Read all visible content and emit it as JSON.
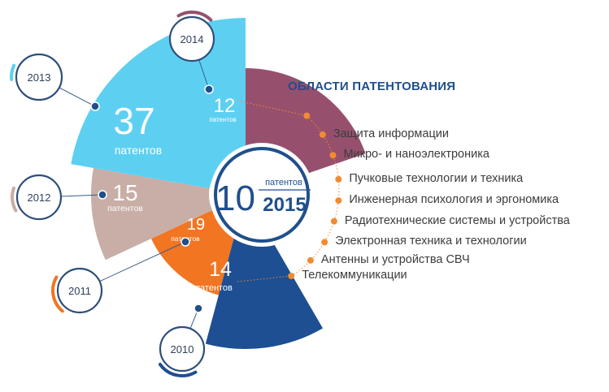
{
  "chart_data": {
    "type": "pie",
    "title": "ОБЛАСТИ ПАТЕНТОВАНИЯ",
    "series": [
      {
        "year": "2013",
        "value": 37,
        "unit": "патентов",
        "color": "#5dd0f2"
      },
      {
        "year": "2014",
        "value": 12,
        "unit": "патентов",
        "color": "#96506e"
      },
      {
        "year": "2012",
        "value": 15,
        "unit": "патентов",
        "color": "#c8aea6"
      },
      {
        "year": "2011",
        "value": 19,
        "unit": "патентов",
        "color": "#f27522"
      },
      {
        "year": "2010",
        "value": 14,
        "unit": "патентов",
        "color": "#1d4f92"
      }
    ],
    "center": {
      "value": "10",
      "unit": "патентов",
      "year": "2015",
      "color": "#1f4f8c"
    },
    "areas_title": "ОБЛАСТИ ПАТЕНТОВАНИЯ",
    "areas": [
      "Защита информации",
      "Микро- и наноэлектроника",
      "Пучковые технологии и техника",
      "Инженерная психология и эргономика",
      "Радиотехнические системы и устройства",
      "Электронная техника и технологии",
      "Антенны и устройства СВЧ",
      "Телекоммуникации"
    ],
    "accent_color": "#f28b30"
  }
}
